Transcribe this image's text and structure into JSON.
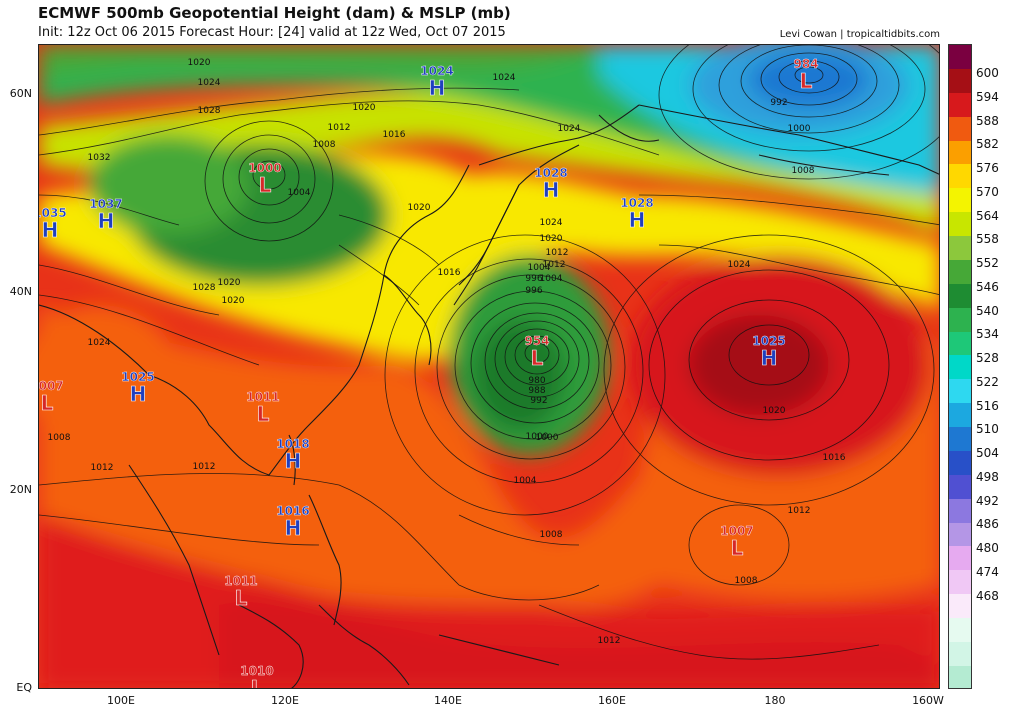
{
  "header": {
    "title": "ECMWF 500mb Geopotential Height (dam) & MSLP (mb)",
    "subtitle": "Init: 12z Oct 06 2015   Forecast Hour: [24]   valid at 12z Wed, Oct 07 2015",
    "credit": "Levi Cowan | tropicaltidbits.com"
  },
  "axes": {
    "lat_labels": [
      "60N",
      "40N",
      "20N",
      "EQ"
    ],
    "lon_labels": [
      "100E",
      "120E",
      "140E",
      "160E",
      "180",
      "160W"
    ]
  },
  "colorbar": {
    "levels": [
      "600",
      "594",
      "588",
      "582",
      "576",
      "570",
      "564",
      "558",
      "552",
      "546",
      "540",
      "534",
      "528",
      "522",
      "516",
      "510",
      "504",
      "498",
      "492",
      "486",
      "480",
      "474",
      "468"
    ],
    "colors": [
      "#7a0040",
      "#a50f15",
      "#d7191c",
      "#f05a10",
      "#fb9f00",
      "#ffd800",
      "#f4f400",
      "#c8e600",
      "#8cc83c",
      "#46a837",
      "#1e8c32",
      "#2db24f",
      "#1ec878",
      "#00d8c8",
      "#2ed8f0",
      "#1ca8e0",
      "#1e78d2",
      "#2850c8",
      "#5050d2",
      "#8c78e0",
      "#b496e6",
      "#e6aaf0",
      "#f0c8f5",
      "#faeafa",
      "#e6faf0",
      "#d2f5e6",
      "#b4ebd2"
    ]
  },
  "pressure_centers": [
    {
      "type": "H",
      "value": "1024"
    },
    {
      "type": "L",
      "value": "984"
    },
    {
      "type": "L",
      "value": "1000"
    },
    {
      "type": "H",
      "value": "1035"
    },
    {
      "type": "H",
      "value": "1037"
    },
    {
      "type": "H",
      "value": "1028"
    },
    {
      "type": "H",
      "value": "1028"
    },
    {
      "type": "L",
      "value": "954"
    },
    {
      "type": "H",
      "value": "1025"
    },
    {
      "type": "H",
      "value": "1025"
    },
    {
      "type": "L",
      "value": "1011"
    },
    {
      "type": "H",
      "value": "1018"
    },
    {
      "type": "H",
      "value": "1016"
    },
    {
      "type": "L",
      "value": "1007"
    },
    {
      "type": "L",
      "value": "1011"
    },
    {
      "type": "L",
      "value": "1010"
    },
    {
      "type": "L",
      "value": "1007"
    }
  ],
  "isobar_labels": [
    "1020",
    "1024",
    "1028",
    "1032",
    "1012",
    "1008",
    "1004",
    "1016",
    "1020",
    "1024",
    "1024",
    "1020",
    "1016",
    "1020",
    "1012",
    "1004",
    "996",
    "992",
    "1000",
    "1008",
    "1024",
    "1020",
    "1012",
    "1004",
    "996",
    "980",
    "988",
    "992",
    "1000",
    "1004",
    "1008",
    "1024",
    "1020",
    "1016",
    "1012",
    "1008",
    "1012",
    "1008",
    "1012",
    "1000",
    "1028",
    "1020",
    "1024",
    "1012"
  ],
  "map_colors": {
    "h_color": "#1f3fbf",
    "l_color": "#d62828"
  }
}
